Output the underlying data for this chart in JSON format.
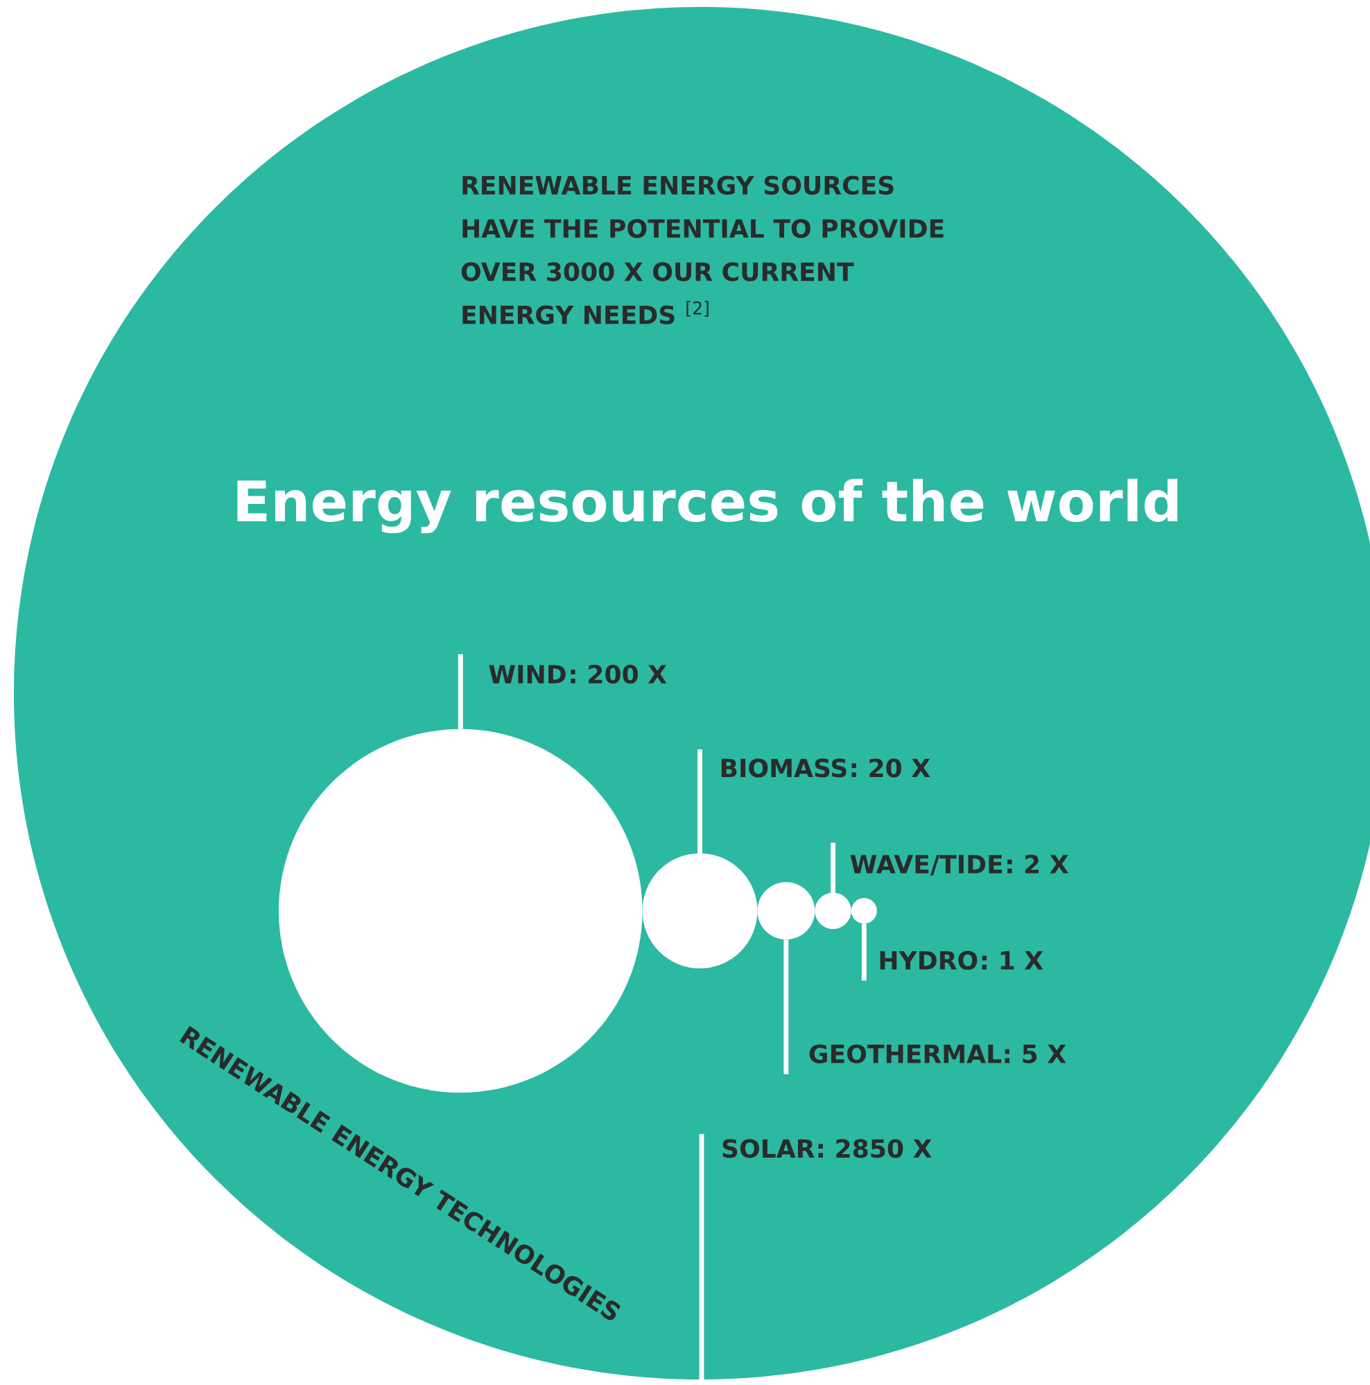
{
  "chart_data": {
    "type": "other",
    "title": "Energy resources of the world",
    "subtitle": "RENEWABLE ENERGY SOURCES\nHAVE THE POTENTIAL TO PROVIDE\nOVER 3000 X OUR CURRENT\nENERGY NEEDS $^{[2]}$",
    "categories": [
      "WIND",
      "BIOMASS",
      "GEOTHERMAL",
      "WAVE/TIDE",
      "HYDRO",
      "SOLAR"
    ],
    "values": [
      200,
      20,
      5,
      2,
      1,
      2850
    ],
    "value_labels": [
      ": 200 X",
      ": 20 X",
      ": 5 X",
      ": 2 X",
      ": 1 X",
      ": 2850 X"
    ],
    "colors": [
      "#ffffff",
      "#ffffff",
      "#ffffff",
      "#ffffff",
      "#ffffff",
      "#2bb9a1"
    ],
    "annotations": [
      "RENEWABLE ENERGY TECHNOLOGIES"
    ]
  }
}
